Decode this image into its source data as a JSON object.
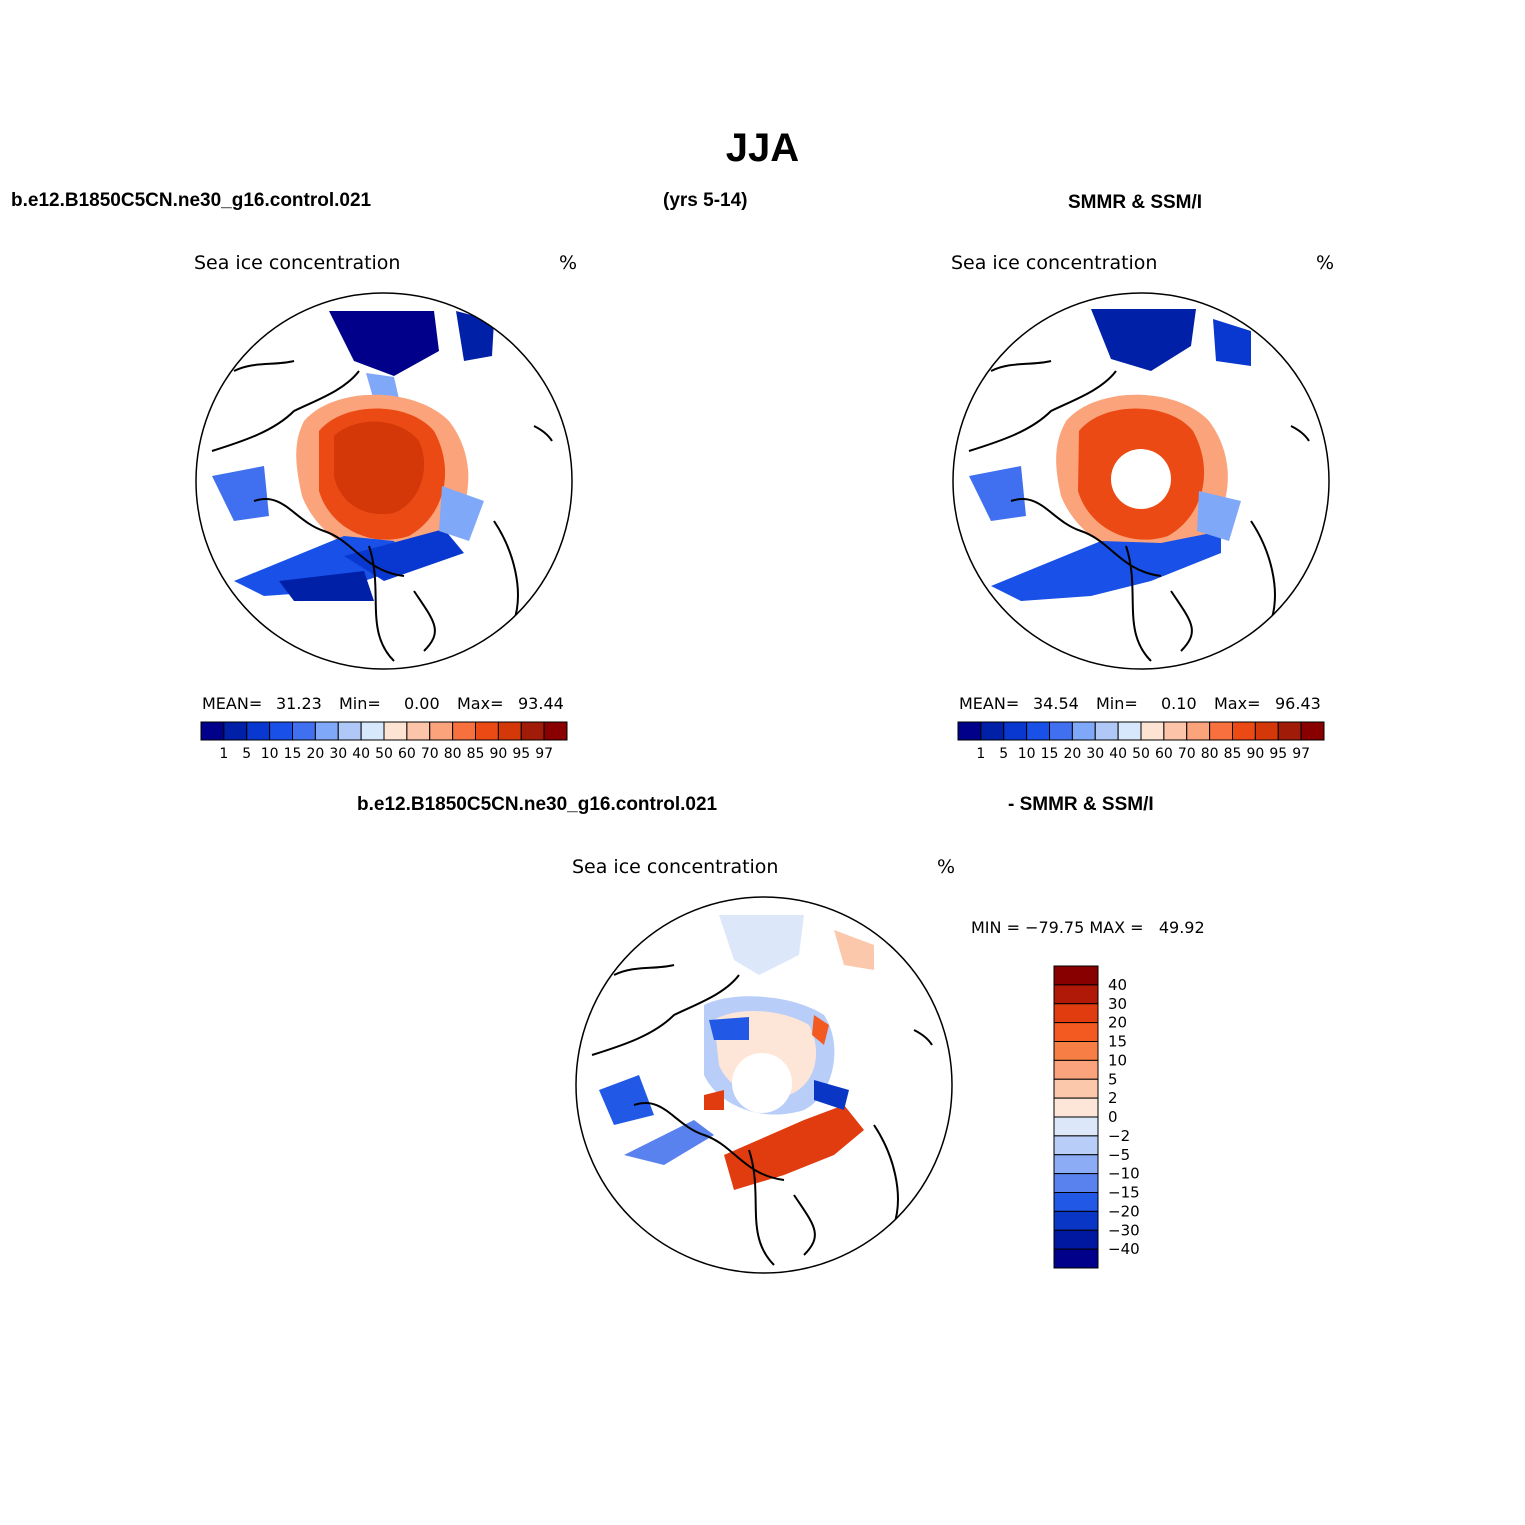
{
  "title": "JJA",
  "header": {
    "case_name": "b.e12.B1850C5CN.ne30_g16.control.021",
    "years": "(yrs 5-14)",
    "obs_name": "SMMR & SSM/I",
    "diff_case": "b.e12.B1850C5CN.ne30_g16.control.021",
    "diff_obs": "- SMMR & SSM/I"
  },
  "panels": [
    {
      "label": "Sea ice concentration",
      "units": "%",
      "stats": {
        "mean_label": "MEAN=",
        "mean": "31.23",
        "min_label": "Min=",
        "min": "0.00",
        "max_label": "Max=",
        "max": "93.44"
      }
    },
    {
      "label": "Sea ice concentration",
      "units": "%",
      "stats": {
        "mean_label": "MEAN=",
        "mean": "34.54",
        "min_label": "Min=",
        "min": "0.10",
        "max_label": "Max=",
        "max": "96.43"
      }
    },
    {
      "label": "Sea ice concentration",
      "units": "%",
      "stats": {
        "text": "MIN = −79.75 MAX =   49.92"
      }
    }
  ],
  "chart_data": [
    {
      "type": "heatmap",
      "projection": "north polar stereographic",
      "title": "Sea ice concentration",
      "units": "%",
      "colorbar": {
        "orientation": "horizontal",
        "levels": [
          "1",
          "5",
          "10",
          "15",
          "20",
          "30",
          "40",
          "50",
          "60",
          "70",
          "80",
          "85",
          "90",
          "95",
          "97"
        ],
        "colors": [
          "#00008a",
          "#0020a8",
          "#0838d0",
          "#1850e8",
          "#4070f0",
          "#80a8f8",
          "#b0c8f8",
          "#d8e8fc",
          "#fde4d2",
          "#fcc4a8",
          "#fba47c",
          "#f7703e",
          "#ec4a14",
          "#d43808",
          "#a01c08",
          "#880000"
        ]
      },
      "stats": {
        "mean": 31.23,
        "min": 0.0,
        "max": 93.44
      }
    },
    {
      "type": "heatmap",
      "projection": "north polar stereographic",
      "title": "Sea ice concentration",
      "units": "%",
      "colorbar": {
        "orientation": "horizontal",
        "levels": [
          "1",
          "5",
          "10",
          "15",
          "20",
          "30",
          "40",
          "50",
          "60",
          "70",
          "80",
          "85",
          "90",
          "95",
          "97"
        ],
        "colors": [
          "#00008a",
          "#0020a8",
          "#0838d0",
          "#1850e8",
          "#4070f0",
          "#80a8f8",
          "#b0c8f8",
          "#d8e8fc",
          "#fde4d2",
          "#fcc4a8",
          "#fba47c",
          "#f7703e",
          "#ec4a14",
          "#d43808",
          "#a01c08",
          "#880000"
        ]
      },
      "stats": {
        "mean": 34.54,
        "min": 0.1,
        "max": 96.43
      }
    },
    {
      "type": "heatmap",
      "projection": "north polar stereographic",
      "title": "Sea ice concentration",
      "units": "%",
      "colorbar": {
        "orientation": "vertical",
        "levels": [
          "40",
          "30",
          "20",
          "15",
          "10",
          "5",
          "2",
          "0",
          "−2",
          "−5",
          "−10",
          "−15",
          "−20",
          "−30",
          "−40"
        ],
        "colors": [
          "#880000",
          "#b01808",
          "#e03c10",
          "#f25a22",
          "#f77f45",
          "#faa37c",
          "#fcc8ac",
          "#fde6d8",
          "#dce8fa",
          "#b8cef8",
          "#8cacf6",
          "#5a82ee",
          "#2258e6",
          "#0a36c6",
          "#0018a0",
          "#00008a"
        ]
      },
      "stats": {
        "min": -79.75,
        "max": 49.92
      }
    }
  ]
}
